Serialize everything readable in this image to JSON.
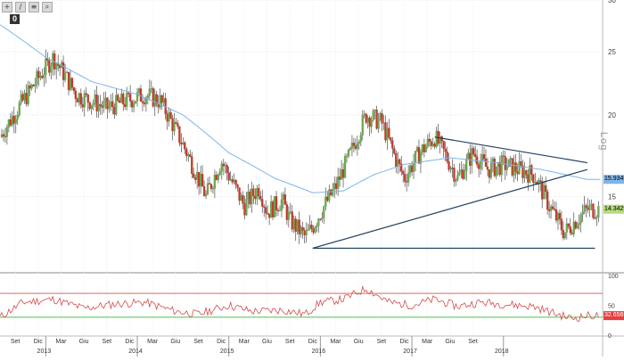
{
  "toolbar": {
    "buttons": [
      {
        "icon": "plus-icon",
        "glyph": "+"
      },
      {
        "icon": "pencil-icon",
        "glyph": "∕"
      },
      {
        "icon": "text-icon",
        "glyph": "≡"
      },
      {
        "icon": "zoom-icon",
        "glyph": "⌕"
      }
    ],
    "badge": "0"
  },
  "scale_label": "Log",
  "colors": {
    "up_candle": "#6aa84f",
    "down_candle": "#c0392b",
    "ma": "#7fb5e6",
    "trend": "#1f3f5f",
    "rsi": "#d44a4a",
    "rsi_upper": "#e06666",
    "rsi_lower": "#4fbf4f",
    "ma_tag": "#7fb5e6",
    "last_tag": "#b6d97a",
    "rsi_tag": "#e83e3e"
  },
  "chart_data": [
    {
      "type": "candlestick",
      "scale": "log",
      "ylim": [
        11.5,
        30
      ],
      "y_ticks": [
        "30",
        "25",
        "20",
        "15"
      ],
      "x_ticks": [
        "Set",
        "Dic",
        "Mar",
        "Giu",
        "Set",
        "Dic",
        "Mar",
        "Giu",
        "Set",
        "Dic",
        "Mar",
        "Giu",
        "Set",
        "Dic",
        "Mar",
        "Giu",
        "Set",
        "Dic",
        "Mar",
        "Giu",
        "Set"
      ],
      "year_labels": [
        "2013",
        "2014",
        "2015",
        "2016",
        "2017",
        "2018"
      ],
      "price_labels": {
        "moving_average": "15.9345",
        "last": "14.3429"
      },
      "path_key_points": [
        [
          "2012-07",
          18.5
        ],
        [
          "2012-10",
          21.0
        ],
        [
          "2013-02",
          24.5
        ],
        [
          "2013-05",
          21.5
        ],
        [
          "2013-09",
          20.5
        ],
        [
          "2014-02",
          21.5
        ],
        [
          "2014-04",
          21.0
        ],
        [
          "2014-08",
          17.0
        ],
        [
          "2014-10",
          15.0
        ],
        [
          "2014-12",
          17.0
        ],
        [
          "2015-03",
          14.5
        ],
        [
          "2015-05",
          15.5
        ],
        [
          "2015-06",
          14.2
        ],
        [
          "2015-08",
          14.8
        ],
        [
          "2015-09",
          13.8
        ],
        [
          "2015-11",
          13.0
        ],
        [
          "2015-12",
          13.5
        ],
        [
          "2016-03",
          15.5
        ],
        [
          "2016-05",
          17.5
        ],
        [
          "2016-07",
          20.0
        ],
        [
          "2016-09",
          19.5
        ],
        [
          "2016-11",
          17.0
        ],
        [
          "2016-12",
          16.0
        ],
        [
          "2017-02",
          17.5
        ],
        [
          "2017-04",
          18.5
        ],
        [
          "2017-07",
          16.0
        ],
        [
          "2017-09",
          17.5
        ],
        [
          "2017-11",
          16.5
        ],
        [
          "2018-01",
          16.8
        ],
        [
          "2018-03",
          16.5
        ],
        [
          "2018-05",
          16.2
        ],
        [
          "2018-07",
          14.5
        ],
        [
          "2018-09",
          13.2
        ],
        [
          "2018-11",
          14.0
        ],
        [
          "2018-12",
          14.34
        ]
      ],
      "moving_average": [
        [
          "2012-07",
          27.5
        ],
        [
          "2013-01",
          24.5
        ],
        [
          "2013-07",
          22.5
        ],
        [
          "2014-01",
          21.5
        ],
        [
          "2014-07",
          20.0
        ],
        [
          "2015-01",
          17.5
        ],
        [
          "2015-07",
          16.0
        ],
        [
          "2015-12",
          15.2
        ],
        [
          "2016-04",
          15.3
        ],
        [
          "2016-08",
          16.2
        ],
        [
          "2016-12",
          16.8
        ],
        [
          "2017-06",
          17.2
        ],
        [
          "2017-12",
          16.9
        ],
        [
          "2018-06",
          16.5
        ],
        [
          "2018-12",
          15.93
        ]
      ],
      "trendlines": [
        {
          "from": [
            "2015-12",
            12.5
          ],
          "to": [
            "2018-12",
            16.5
          ]
        },
        {
          "from": [
            "2017-04",
            18.5
          ],
          "to": [
            "2018-12",
            16.9
          ]
        },
        {
          "from": [
            "2015-12",
            12.5
          ],
          "to": [
            "2019-01",
            12.5
          ]
        }
      ]
    },
    {
      "type": "line",
      "ylim": [
        0,
        100
      ],
      "y_ticks": [
        "100",
        "50",
        "0"
      ],
      "levels": [
        70,
        30
      ],
      "last_label": "32.6569",
      "key_points": [
        [
          "2012-07",
          30
        ],
        [
          "2012-10",
          55
        ],
        [
          "2013-02",
          60
        ],
        [
          "2013-06",
          45
        ],
        [
          "2013-10",
          52
        ],
        [
          "2014-02",
          55
        ],
        [
          "2014-06",
          40
        ],
        [
          "2014-09",
          35
        ],
        [
          "2015-01",
          50
        ],
        [
          "2015-04",
          40
        ],
        [
          "2015-08",
          42
        ],
        [
          "2015-11",
          35
        ],
        [
          "2016-01",
          55
        ],
        [
          "2016-04",
          60
        ],
        [
          "2016-07",
          78
        ],
        [
          "2016-10",
          55
        ],
        [
          "2017-01",
          50
        ],
        [
          "2017-04",
          60
        ],
        [
          "2017-07",
          48
        ],
        [
          "2017-10",
          55
        ],
        [
          "2018-01",
          52
        ],
        [
          "2018-05",
          48
        ],
        [
          "2018-08",
          35
        ],
        [
          "2018-10",
          28
        ],
        [
          "2018-12",
          32.66
        ]
      ]
    }
  ]
}
